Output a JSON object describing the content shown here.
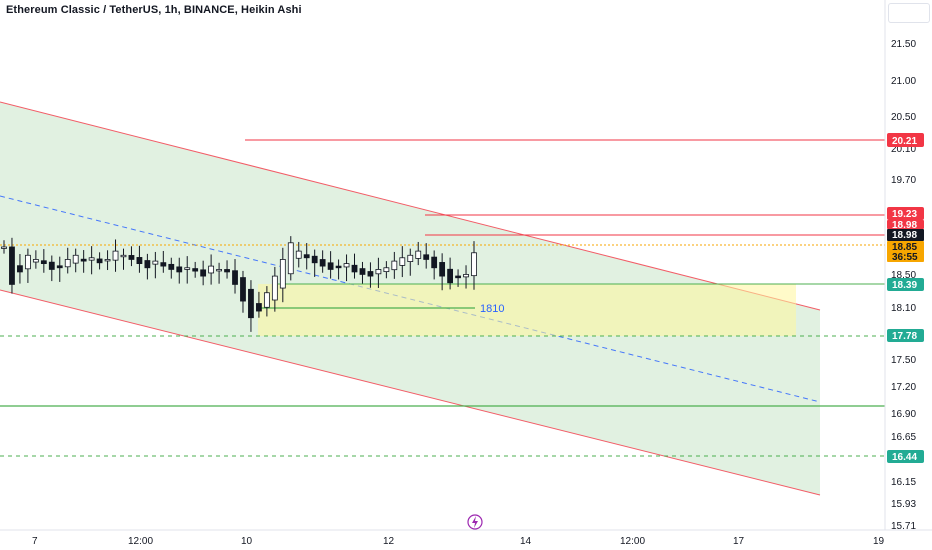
{
  "chart_data": {
    "type": "candlestick",
    "title": "Ethereum Classic / TetherUS, 1h, BINANCE, Heikin Ashi",
    "y_ticks": [
      "21.50",
      "21.00",
      "20.50",
      "20.10",
      "19.70",
      "18.50",
      "18.10",
      "17.50",
      "17.20",
      "16.90",
      "16.65",
      "16.15",
      "15.93",
      "15.71"
    ],
    "x_ticks": [
      "7",
      "12:00",
      "10",
      "12",
      "14",
      "12:00",
      "17",
      "19"
    ],
    "price_tags": [
      {
        "label": "20.21",
        "color": "#f23645"
      },
      {
        "label": "19.23",
        "color": "#f23645"
      },
      {
        "label": "18.98",
        "color": "#f23645"
      },
      {
        "label": "18.98",
        "color": "#131722"
      },
      {
        "label": "18.85",
        "color": "#f7a600"
      },
      {
        "label": "36:55",
        "color": "#f7a600"
      },
      {
        "label": "18.39",
        "color": "#22ab94"
      },
      {
        "label": "17.78",
        "color": "#22ab94"
      },
      {
        "label": "16.44",
        "color": "#22ab94"
      }
    ],
    "annotation": "1810",
    "horizontal_levels": [
      {
        "value": 20.21,
        "color": "#f23645",
        "style": "solid"
      },
      {
        "value": 19.23,
        "color": "#f23645",
        "style": "solid"
      },
      {
        "value": 18.98,
        "color": "#f23645",
        "style": "solid"
      },
      {
        "value": 18.39,
        "color": "#4caf50",
        "style": "solid"
      },
      {
        "value": 17.78,
        "color": "#4caf50",
        "style": "dashed"
      },
      {
        "value": 16.98,
        "color": "#4caf50",
        "style": "solid"
      },
      {
        "value": 16.44,
        "color": "#4caf50",
        "style": "dashed"
      }
    ],
    "price_series": [
      19.05,
      18.6,
      18.75,
      18.95,
      18.9,
      18.85,
      18.78,
      18.8,
      18.9,
      18.95,
      18.88,
      18.92,
      18.86,
      18.9,
      19.0,
      18.95,
      18.9,
      18.85,
      18.8,
      18.88,
      18.82,
      18.78,
      18.75,
      18.8,
      18.76,
      18.7,
      18.82,
      18.78,
      18.75,
      18.6,
      18.4,
      18.2,
      18.28,
      18.5,
      18.7,
      18.9,
      19.1,
      19.0,
      18.92,
      18.86,
      18.82,
      18.78,
      18.8,
      18.85,
      18.75,
      18.72,
      18.7,
      18.78,
      18.8,
      18.88,
      18.92,
      18.95,
      19.0,
      18.9,
      18.8,
      18.7,
      18.62,
      18.68,
      18.72,
      18.98
    ]
  }
}
